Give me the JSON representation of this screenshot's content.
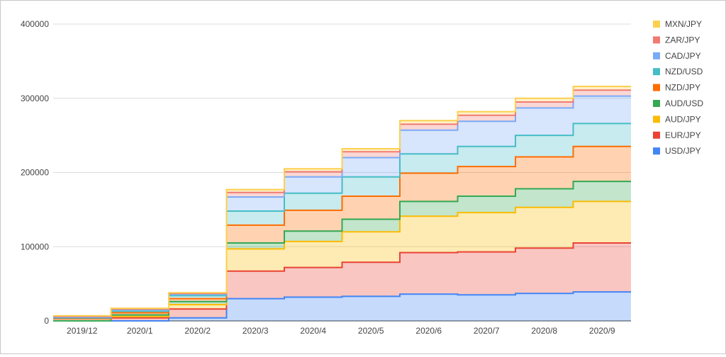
{
  "chart_data": {
    "type": "area",
    "stacked": true,
    "step": true,
    "title": "",
    "xlabel": "",
    "ylabel": "",
    "categories": [
      "2019/12",
      "2020/1",
      "2020/2",
      "2020/3",
      "2020/4",
      "2020/5",
      "2020/6",
      "2020/7",
      "2020/8",
      "2020/9"
    ],
    "ylim": [
      0,
      400000
    ],
    "yticks": [
      "0",
      "100000",
      "200000",
      "300000",
      "400000"
    ],
    "grid": true,
    "legend_position": "right",
    "series": [
      {
        "name": "USD/JPY",
        "color": "#4285F4",
        "values": [
          0,
          0,
          4000,
          30000,
          32000,
          33000,
          36000,
          35000,
          37000,
          39000
        ]
      },
      {
        "name": "EUR/JPY",
        "color": "#EA4335",
        "values": [
          0,
          4000,
          12000,
          37000,
          40000,
          46000,
          56000,
          58000,
          61000,
          66000
        ]
      },
      {
        "name": "AUD/JPY",
        "color": "#FBBC04",
        "values": [
          0,
          2000,
          6000,
          30000,
          35000,
          41000,
          49000,
          53000,
          55000,
          56000
        ]
      },
      {
        "name": "AUD/USD",
        "color": "#34A853",
        "values": [
          0,
          2000,
          4000,
          8000,
          14000,
          17000,
          20000,
          22000,
          25000,
          27000
        ]
      },
      {
        "name": "NZD/JPY",
        "color": "#FF6D01",
        "values": [
          3000,
          3000,
          4000,
          24000,
          28000,
          31000,
          38000,
          40000,
          43000,
          47000
        ]
      },
      {
        "name": "NZD/USD",
        "color": "#46BDC6",
        "values": [
          1000,
          2000,
          4000,
          19000,
          23000,
          26000,
          26000,
          27000,
          29000,
          31000
        ]
      },
      {
        "name": "CAD/JPY",
        "color": "#7BAAF7",
        "values": [
          1000,
          2000,
          2000,
          19000,
          22000,
          26000,
          32000,
          34000,
          37000,
          37000
        ]
      },
      {
        "name": "ZAR/JPY",
        "color": "#F07B72",
        "values": [
          1000,
          1000,
          1000,
          6000,
          7000,
          8000,
          8000,
          8000,
          8000,
          8000
        ]
      },
      {
        "name": "MXN/JPY",
        "color": "#FCD04F",
        "values": [
          1000,
          1000,
          1000,
          4000,
          4000,
          4000,
          5000,
          5000,
          5000,
          5000
        ]
      }
    ]
  }
}
